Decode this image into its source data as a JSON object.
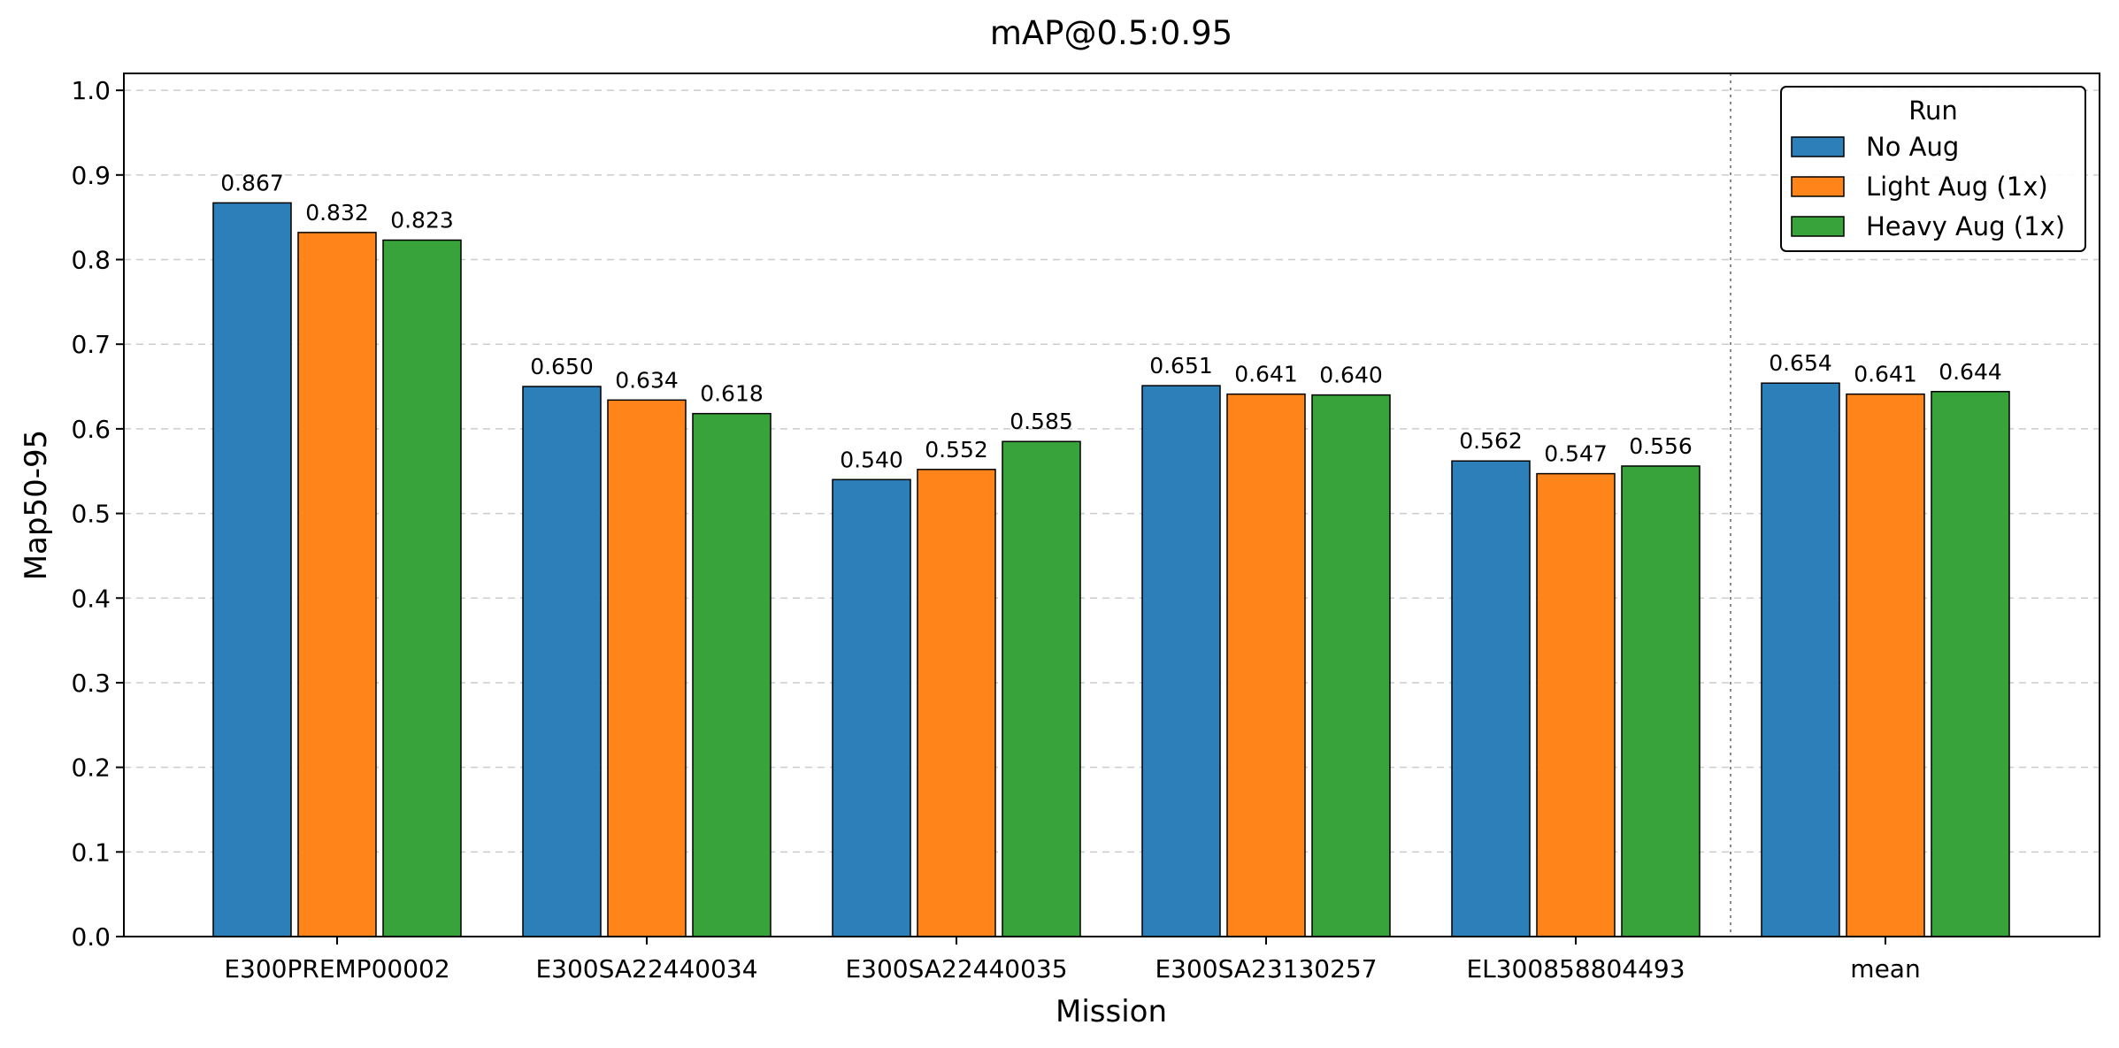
{
  "chart_data": {
    "type": "bar",
    "title": "mAP@0.5:0.95",
    "xlabel": "Mission",
    "ylabel": "Map50-95",
    "ylim": [
      0,
      1.02
    ],
    "yticks": [
      "0.0",
      "0.1",
      "0.2",
      "0.3",
      "0.4",
      "0.5",
      "0.6",
      "0.7",
      "0.8",
      "0.9",
      "1.0"
    ],
    "grid": "horizontal dashed",
    "categories": [
      "E300PREMP00002",
      "E300SA22440034",
      "E300SA22440035",
      "E300SA23130257",
      "EL300858804493",
      "mean"
    ],
    "separator_before": "mean",
    "legend": {
      "title": "Run",
      "placement": "top-right"
    },
    "series": [
      {
        "name": "No Aug",
        "color": "#2c7fb8",
        "values": [
          0.867,
          0.65,
          0.54,
          0.651,
          0.562,
          0.654
        ],
        "labels": [
          "0.867",
          "0.650",
          "0.540",
          "0.651",
          "0.562",
          "0.654"
        ]
      },
      {
        "name": "Light Aug (1x)",
        "color": "#ff851b",
        "values": [
          0.832,
          0.634,
          0.552,
          0.641,
          0.547,
          0.641
        ],
        "labels": [
          "0.832",
          "0.634",
          "0.552",
          "0.641",
          "0.547",
          "0.641"
        ]
      },
      {
        "name": "Heavy Aug (1x)",
        "color": "#38a33a",
        "values": [
          0.823,
          0.618,
          0.585,
          0.64,
          0.556,
          0.644
        ],
        "labels": [
          "0.823",
          "0.618",
          "0.585",
          "0.640",
          "0.556",
          "0.644"
        ]
      }
    ]
  }
}
